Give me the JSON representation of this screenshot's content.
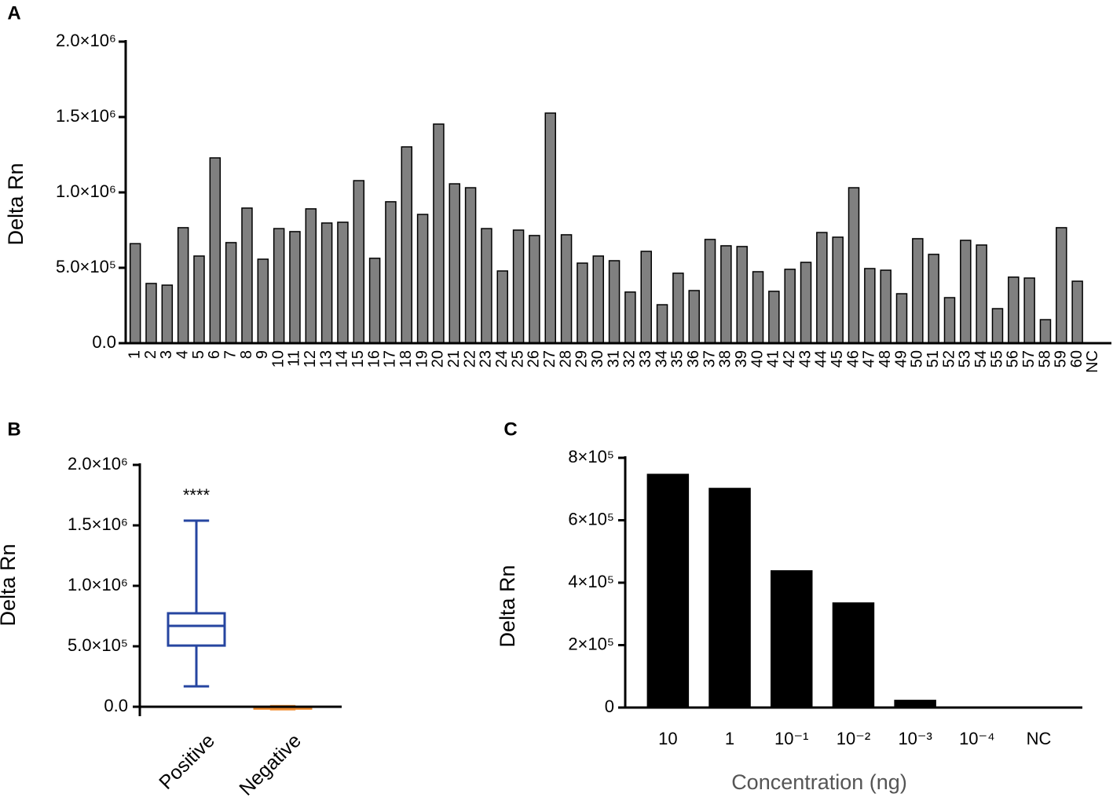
{
  "chart_data": [
    {
      "type": "bar",
      "panel_label": "A",
      "ylabel": "Delta Rn",
      "color": "#808080",
      "categories": [
        "1",
        "2",
        "3",
        "4",
        "5",
        "6",
        "7",
        "8",
        "9",
        "10",
        "11",
        "12",
        "13",
        "14",
        "15",
        "16",
        "17",
        "18",
        "19",
        "20",
        "21",
        "22",
        "23",
        "24",
        "25",
        "26",
        "27",
        "28",
        "29",
        "30",
        "31",
        "32",
        "33",
        "34",
        "35",
        "36",
        "37",
        "38",
        "39",
        "40",
        "41",
        "42",
        "43",
        "44",
        "45",
        "46",
        "47",
        "48",
        "49",
        "50",
        "51",
        "52",
        "53",
        "54",
        "55",
        "56",
        "57",
        "58",
        "59",
        "60",
        "NC"
      ],
      "values": [
        660000,
        396000,
        385000,
        766000,
        578000,
        1229000,
        667000,
        896000,
        557000,
        760000,
        740000,
        891000,
        797000,
        802000,
        1078000,
        563000,
        938000,
        1302000,
        854000,
        1453000,
        1057000,
        1031000,
        760000,
        479000,
        750000,
        714000,
        1526000,
        719000,
        531000,
        578000,
        547000,
        339000,
        609000,
        255000,
        464000,
        349000,
        688000,
        646000,
        641000,
        474000,
        344000,
        490000,
        536000,
        734000,
        703000,
        1031000,
        495000,
        484000,
        328000,
        693000,
        589000,
        302000,
        682000,
        651000,
        229000,
        438000,
        432000,
        156000,
        766000,
        411000,
        0
      ],
      "ylim": [
        0,
        2000000
      ],
      "yticks": [
        {
          "value": 0,
          "label": "0.0"
        },
        {
          "value": 500000,
          "label": "5.0×10⁵"
        },
        {
          "value": 1000000,
          "label": "1.0×10⁶"
        },
        {
          "value": 1500000,
          "label": "1.5×10⁶"
        },
        {
          "value": 2000000,
          "label": "2.0×10⁶"
        }
      ]
    },
    {
      "type": "box",
      "panel_label": "B",
      "ylabel": "Delta Rn",
      "annotation": "****",
      "categories": [
        "Positive",
        "Negative"
      ],
      "colors": [
        "#2645a0",
        "#f08a2c"
      ],
      "boxes": [
        {
          "min": 169000,
          "q1": 506000,
          "median": 669000,
          "q3": 773000,
          "max": 1539000
        },
        {
          "min": -20000,
          "q1": -15000,
          "median": -5000,
          "q3": 0,
          "max": 5000
        }
      ],
      "ylim": [
        0,
        2000000
      ],
      "yticks": [
        {
          "value": 0,
          "label": "0.0"
        },
        {
          "value": 500000,
          "label": "5.0×10⁵"
        },
        {
          "value": 1000000,
          "label": "1.0×10⁶"
        },
        {
          "value": 1500000,
          "label": "1.5×10⁶"
        },
        {
          "value": 2000000,
          "label": "2.0×10⁶"
        }
      ]
    },
    {
      "type": "bar",
      "panel_label": "C",
      "ylabel": "Delta Rn",
      "xlabel": "Concentration (ng)",
      "color": "#000000",
      "categories": [
        "10",
        "1",
        "10⁻¹",
        "10⁻²",
        "10⁻³",
        "10⁻⁴",
        "NC"
      ],
      "values": [
        747000,
        702000,
        438000,
        335000,
        23000,
        0,
        0
      ],
      "ylim": [
        0,
        800000
      ],
      "yticks": [
        0,
        {
          "value": 200000,
          "label": "2×10⁵"
        },
        {
          "value": 400000,
          "label": "4×10⁵"
        },
        {
          "value": 600000,
          "label": "6×10⁵"
        },
        {
          "value": 800000,
          "label": "8×10⁵"
        }
      ]
    }
  ]
}
